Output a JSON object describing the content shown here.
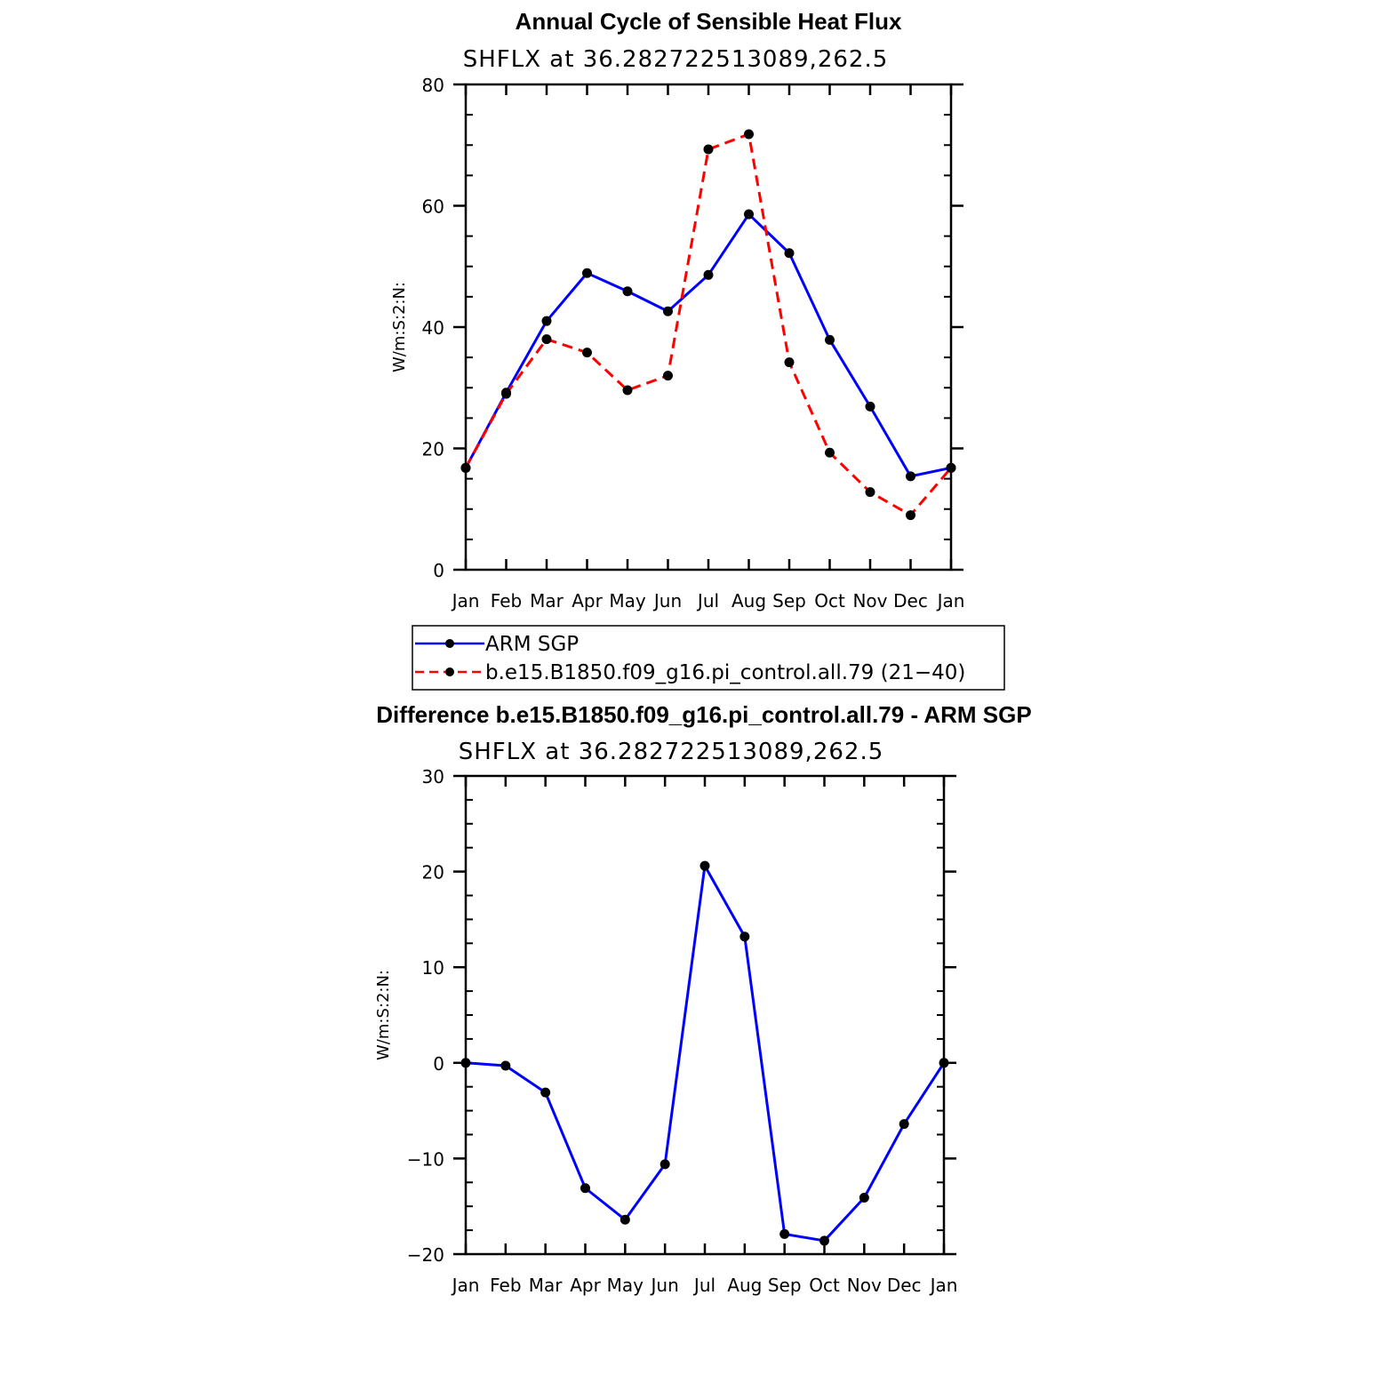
{
  "chart_data": [
    {
      "type": "line",
      "title": "Annual Cycle of Sensible Heat Flux",
      "subtitle": "SHFLX  at  36.282722513089,262.5",
      "ylabel": "W/m:S:2:N:",
      "xlabel": "",
      "categories": [
        "Jan",
        "Feb",
        "Mar",
        "Apr",
        "May",
        "Jun",
        "Jul",
        "Aug",
        "Sep",
        "Oct",
        "Nov",
        "Dec",
        "Jan"
      ],
      "ylim": [
        0,
        80
      ],
      "yticks": [
        "0",
        "20",
        "40",
        "60",
        "80"
      ],
      "series": [
        {
          "name": "ARM SGP",
          "color": "#0000ff",
          "style": "solid",
          "values": [
            16.8,
            29.2,
            41.0,
            48.9,
            45.9,
            42.6,
            48.6,
            58.6,
            52.2,
            37.9,
            26.9,
            15.4,
            16.8
          ]
        },
        {
          "name": "b.e15.B1850.f09_g16.pi_control.all.79 (21−40)",
          "color": "#ff0000",
          "style": "dashed",
          "values": [
            16.8,
            29.0,
            38.0,
            35.8,
            29.6,
            32.0,
            69.3,
            71.8,
            34.2,
            19.3,
            12.8,
            9.0,
            16.8
          ]
        }
      ],
      "grid": false,
      "legend": "below"
    },
    {
      "type": "line",
      "title": "Difference b.e15.B1850.f09_g16.pi_control.all.79 - ARM SGP",
      "subtitle": "SHFLX  at  36.282722513089,262.5",
      "ylabel": "W/m:S:2:N:",
      "xlabel": "",
      "categories": [
        "Jan",
        "Feb",
        "Mar",
        "Apr",
        "May",
        "Jun",
        "Jul",
        "Aug",
        "Sep",
        "Oct",
        "Nov",
        "Dec",
        "Jan"
      ],
      "ylim": [
        -20,
        30
      ],
      "yticks": [
        "−20",
        "−10",
        "0",
        "10",
        "20",
        "30"
      ],
      "series": [
        {
          "color": "#0000ff",
          "style": "solid",
          "values": [
            0.0,
            -0.3,
            -3.1,
            -13.1,
            -16.4,
            -10.6,
            20.6,
            13.2,
            -17.9,
            -18.6,
            -14.1,
            -6.4,
            0.0
          ]
        }
      ],
      "grid": false
    }
  ]
}
